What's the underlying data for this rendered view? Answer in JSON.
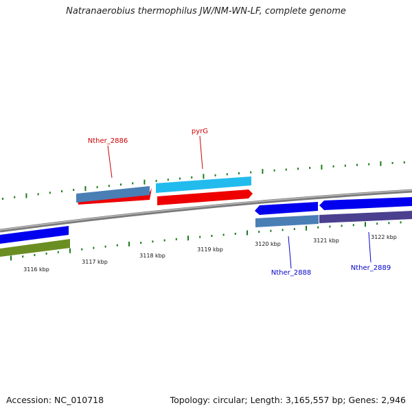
{
  "title": "Natranaerobius thermophilus JW/NM-WN-LF, complete genome",
  "footer": {
    "accession": "Accession: NC_010718",
    "topology": "Topology: circular; Length: 3,165,557 bp; Genes: 2,946"
  },
  "gene_labels": [
    {
      "id": "Nther_2886",
      "text": "Nther_2886",
      "color": "#cc0000"
    },
    {
      "id": "pyrG",
      "text": "pyrG",
      "color": "#cc0000"
    },
    {
      "id": "Nther_2888",
      "text": "Nther_2888",
      "color": "#0000cc"
    },
    {
      "id": "Nther_2889",
      "text": "Nther_2889",
      "color": "#0000cc"
    }
  ],
  "scale_labels": [
    "3116 kbp",
    "3117 kbp",
    "3118 kbp",
    "3119 kbp",
    "3120 kbp",
    "3121 kbp",
    "3122 kbp"
  ],
  "colors": {
    "backbone": "#888888",
    "tick": "#1a7a1a",
    "blue": "#0000ee",
    "red": "#ee0000",
    "steel": "#4a7fb5",
    "cyan": "#22bbee",
    "olive": "#6b8e23",
    "purple": "#4b3f8f"
  }
}
